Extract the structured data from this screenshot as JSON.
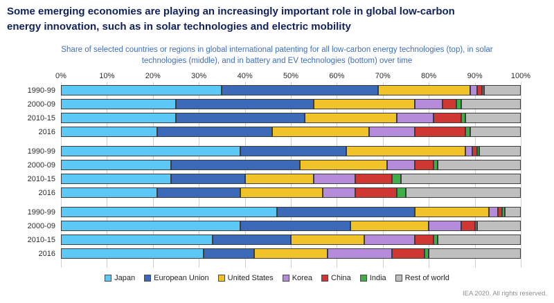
{
  "header": {
    "title_line1": "Some emerging economies are playing an increasingly important role in global low-carbon",
    "title_line2": "energy innovation, such as in solar technologies and electric mobility",
    "subtitle_line1": "Share of selected countries or regions in global international patenting for all low-carbon energy technologies (top), in solar",
    "subtitle_line2": "technologies (middle), and in battery and EV technologies (bottom) over time"
  },
  "footer": {
    "credit": "IEA 2020. All rights reserved."
  },
  "chart_data": {
    "type": "bar",
    "stacked": true,
    "orientation": "horizontal",
    "xlim": [
      0,
      100
    ],
    "x_ticks": [
      "0%",
      "10%",
      "20%",
      "30%",
      "40%",
      "50%",
      "60%",
      "70%",
      "80%",
      "90%",
      "100%"
    ],
    "grid": true,
    "legend_position": "bottom",
    "series_legend": [
      {
        "name": "Japan",
        "color": "#5bc8f5"
      },
      {
        "name": "European Union",
        "color": "#3c69b8"
      },
      {
        "name": "United States",
        "color": "#f0c428"
      },
      {
        "name": "Korea",
        "color": "#b58cd9"
      },
      {
        "name": "China",
        "color": "#cf3832"
      },
      {
        "name": "India",
        "color": "#3fae49"
      },
      {
        "name": "Rest of world",
        "color": "#bfbfbf"
      }
    ],
    "groups": [
      {
        "name": "All low-carbon energy technologies",
        "rows": [
          {
            "label": "1990-99",
            "values": [
              35,
              34,
              20,
              1.5,
              1,
              0.5,
              8
            ]
          },
          {
            "label": "2000-09",
            "values": [
              25,
              30,
              22,
              6,
              3,
              1,
              13
            ]
          },
          {
            "label": "2010-15",
            "values": [
              25,
              28,
              20,
              8,
              6,
              1,
              12
            ]
          },
          {
            "label": "2016",
            "values": [
              21,
              25,
              21,
              10,
              11,
              1,
              11
            ]
          }
        ]
      },
      {
        "name": "Solar technologies",
        "rows": [
          {
            "label": "1990-99",
            "values": [
              39,
              23,
              26,
              1.5,
              1,
              0.5,
              9
            ]
          },
          {
            "label": "2000-09",
            "values": [
              24,
              28,
              19,
              6,
              4,
              1,
              18
            ]
          },
          {
            "label": "2010-15",
            "values": [
              24,
              16,
              15,
              9,
              8,
              2,
              26
            ]
          },
          {
            "label": "2016",
            "values": [
              21,
              18,
              18,
              7,
              9,
              2,
              25
            ]
          }
        ]
      },
      {
        "name": "Battery and EV technologies",
        "rows": [
          {
            "label": "1990-99",
            "values": [
              47,
              30,
              16,
              2,
              1,
              0.5,
              3.5
            ]
          },
          {
            "label": "2000-09",
            "values": [
              39,
              24,
              17,
              7,
              3,
              0.5,
              9.5
            ]
          },
          {
            "label": "2010-15",
            "values": [
              33,
              17,
              16,
              11,
              4,
              1,
              18
            ]
          },
          {
            "label": "2016",
            "values": [
              31,
              11,
              16,
              14,
              7,
              1,
              20
            ]
          }
        ]
      }
    ]
  }
}
